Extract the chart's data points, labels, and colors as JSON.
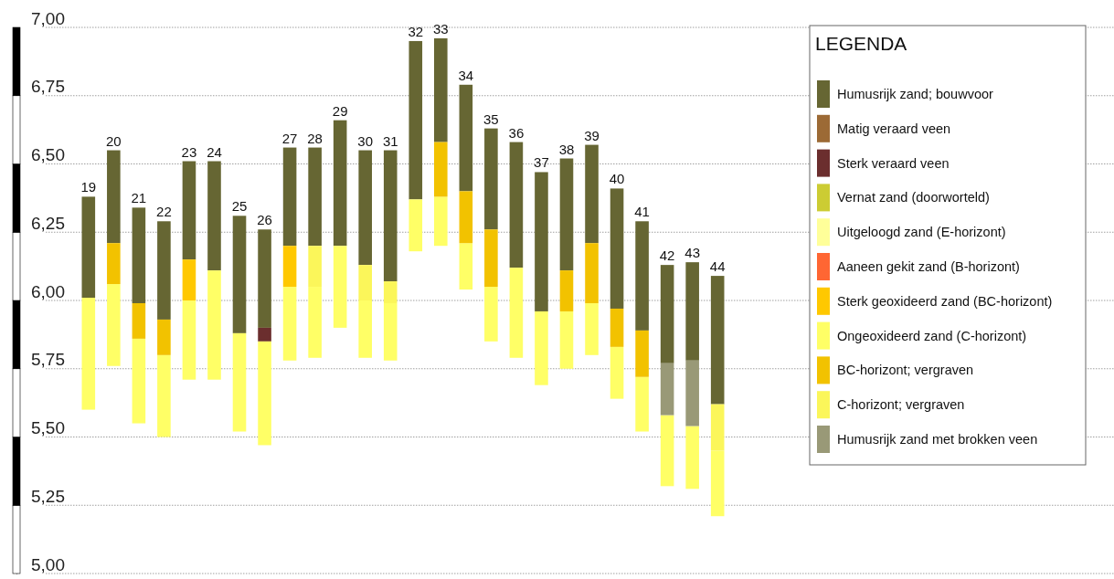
{
  "chart_data": {
    "type": "bar",
    "legend_title": "LEGENDA",
    "legend": "top right",
    "grid": "y",
    "categories": [
      "19",
      "20",
      "21",
      "22",
      "23",
      "24",
      "25",
      "26",
      "27",
      "28",
      "29",
      "30",
      "31",
      "32",
      "33",
      "34",
      "35",
      "36",
      "37",
      "38",
      "39",
      "40",
      "41",
      "42",
      "43",
      "44"
    ],
    "ylim": [
      5,
      7
    ],
    "yticks": [
      {
        "value": 5,
        "label": "5,00"
      },
      {
        "value": 5.25,
        "label": "5,25"
      },
      {
        "value": 5.5,
        "label": "5,50"
      },
      {
        "value": 5.75,
        "label": "5,75"
      },
      {
        "value": 6,
        "label": "6,00"
      },
      {
        "value": 6.25,
        "label": "6,25"
      },
      {
        "value": 6.5,
        "label": "6,50"
      },
      {
        "value": 6.75,
        "label": "6,75"
      },
      {
        "value": 7,
        "label": "7,00"
      }
    ],
    "series": [
      {
        "name": "Humusrijk zand; bouwvoor",
        "color": "#666633",
        "base": [
          6.01,
          6.21,
          5.99,
          5.93,
          6.15,
          6.11,
          5.88,
          5.9,
          6.2,
          6.2,
          6.2,
          6.13,
          6.07,
          6.37,
          6.58,
          6.4,
          6.26,
          6.12,
          5.96,
          6.11,
          6.21,
          5.97,
          5.89,
          5.77,
          5.78,
          5.62
        ],
        "values": [
          0.37,
          0.34,
          0.35,
          0.36,
          0.36,
          0.4,
          0.43,
          0.36,
          0.36,
          0.36,
          0.46,
          0.42,
          0.48,
          0.58,
          0.38,
          0.39,
          0.37,
          0.46,
          0.51,
          0.41,
          0.36,
          0.44,
          0.4,
          0.36,
          0.36,
          0.47
        ]
      },
      {
        "name": "Matig  veraard veen",
        "color": "#9c6a35",
        "values": [
          null,
          null,
          null,
          null,
          null,
          null,
          null,
          null,
          null,
          null,
          null,
          null,
          null,
          null,
          null,
          null,
          null,
          null,
          null,
          null,
          null,
          null,
          null,
          null,
          null,
          null
        ]
      },
      {
        "name": "Sterk veraard veen",
        "color": "#6b2e2e",
        "base": [
          null,
          null,
          null,
          null,
          null,
          null,
          null,
          5.85,
          null,
          null,
          null,
          null,
          null,
          null,
          null,
          null,
          null,
          null,
          null,
          null,
          null,
          null,
          null,
          null,
          null,
          null
        ],
        "values": [
          null,
          null,
          null,
          null,
          null,
          null,
          null,
          0.05,
          null,
          null,
          null,
          null,
          null,
          null,
          null,
          null,
          null,
          null,
          null,
          null,
          null,
          null,
          null,
          null,
          null,
          null
        ]
      },
      {
        "name": "Vernat zand (doorworteld)",
        "color": "#cccc33",
        "values": [
          null,
          null,
          null,
          null,
          null,
          null,
          null,
          null,
          null,
          null,
          null,
          null,
          null,
          null,
          null,
          null,
          null,
          null,
          null,
          null,
          null,
          null,
          null,
          null,
          null,
          null
        ]
      },
      {
        "name": "Uitgeloogd zand (E-horizont)",
        "color": "#ffff99",
        "values": [
          null,
          null,
          null,
          null,
          null,
          null,
          null,
          null,
          null,
          null,
          null,
          null,
          null,
          null,
          null,
          null,
          null,
          null,
          null,
          null,
          null,
          null,
          null,
          null,
          null,
          null
        ]
      },
      {
        "name": "Aaneen gekit zand (B-horizont)",
        "color": "#ff6633",
        "values": [
          null,
          null,
          null,
          null,
          null,
          null,
          null,
          null,
          null,
          null,
          null,
          null,
          null,
          null,
          null,
          null,
          null,
          null,
          null,
          null,
          null,
          null,
          null,
          null,
          null,
          null
        ]
      },
      {
        "name": "Sterk geoxideerd zand (BC-horizont)",
        "color": "#ffc800",
        "base": [
          null,
          null,
          null,
          null,
          6.0,
          null,
          null,
          null,
          6.05,
          null,
          null,
          null,
          null,
          null,
          null,
          null,
          null,
          null,
          null,
          null,
          null,
          null,
          null,
          null,
          null,
          null
        ],
        "values": [
          null,
          null,
          null,
          null,
          0.15,
          null,
          null,
          null,
          0.15,
          null,
          null,
          null,
          null,
          null,
          null,
          null,
          null,
          null,
          null,
          null,
          null,
          null,
          null,
          null,
          null,
          null
        ]
      },
      {
        "name": "Ongeoxideerd zand (C-horizont)",
        "color": "#ffff66",
        "base": [
          5.6,
          5.76,
          5.55,
          5.5,
          5.71,
          5.71,
          5.52,
          5.47,
          5.78,
          5.79,
          5.9,
          5.79,
          5.78,
          6.18,
          6.2,
          6.04,
          5.85,
          5.79,
          5.69,
          5.75,
          5.8,
          5.64,
          5.52,
          5.32,
          5.31,
          5.21
        ],
        "values": [
          0.41,
          0.3,
          0.31,
          0.3,
          0.29,
          0.4,
          0.36,
          0.38,
          0.27,
          0.26,
          0.3,
          0.21,
          0.21,
          0.19,
          0.18,
          0.17,
          0.2,
          0.33,
          0.27,
          0.21,
          0.19,
          0.19,
          0.2,
          0.26,
          0.23,
          0.24
        ]
      },
      {
        "name": "BC-horizont; vergraven",
        "color": "#f2c200",
        "base": [
          null,
          6.06,
          5.86,
          5.8,
          null,
          null,
          null,
          null,
          null,
          null,
          null,
          null,
          null,
          null,
          6.38,
          6.21,
          6.05,
          null,
          null,
          5.96,
          5.99,
          5.83,
          5.72,
          null,
          null,
          null
        ],
        "values": [
          null,
          0.15,
          0.13,
          0.13,
          null,
          null,
          null,
          null,
          null,
          null,
          null,
          null,
          null,
          null,
          0.2,
          0.19,
          0.21,
          null,
          null,
          0.15,
          0.22,
          0.14,
          0.17,
          null,
          null,
          null
        ]
      },
      {
        "name": "C-horizont; vergraven",
        "color": "#fbf65a",
        "base": [
          null,
          null,
          null,
          null,
          null,
          null,
          null,
          null,
          null,
          6.05,
          null,
          6.0,
          5.99,
          null,
          null,
          null,
          null,
          null,
          null,
          null,
          null,
          null,
          null,
          null,
          null,
          5.45
        ],
        "values": [
          null,
          null,
          null,
          null,
          null,
          null,
          null,
          null,
          null,
          0.15,
          null,
          0.13,
          0.08,
          null,
          null,
          null,
          null,
          null,
          null,
          null,
          null,
          null,
          null,
          null,
          null,
          0.17
        ]
      },
      {
        "name": "Humusrijk zand met brokken veen",
        "color": "#999977",
        "base": [
          null,
          null,
          null,
          null,
          null,
          null,
          null,
          null,
          null,
          null,
          null,
          null,
          null,
          null,
          null,
          null,
          null,
          null,
          null,
          null,
          null,
          null,
          null,
          5.58,
          5.54,
          null
        ],
        "values": [
          null,
          null,
          null,
          null,
          null,
          null,
          null,
          null,
          null,
          null,
          null,
          null,
          null,
          null,
          null,
          null,
          null,
          null,
          null,
          null,
          null,
          null,
          null,
          0.19,
          0.24,
          null
        ]
      }
    ]
  }
}
